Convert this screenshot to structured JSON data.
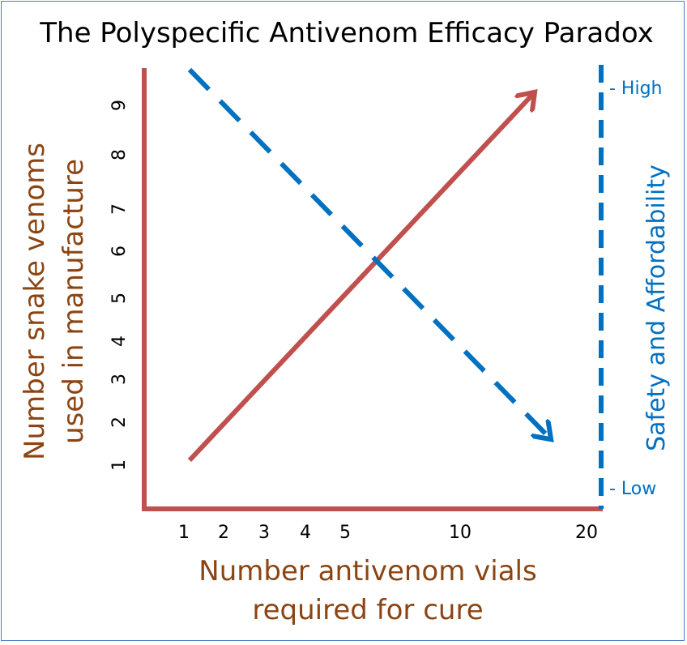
{
  "title": "The Polyspecific Antivenom Efficacy Paradox",
  "x_axis": {
    "label_line1": "Number antivenom vials",
    "label_line2": "required for cure",
    "ticks": [
      "1",
      "2",
      "3",
      "4",
      "5",
      "10",
      "20"
    ]
  },
  "y_axis_left": {
    "label_line1": "Number snake venoms",
    "label_line2": "used in manufacture",
    "ticks": [
      "1",
      "2",
      "3",
      "4",
      "5",
      "6",
      "7",
      "8",
      "9"
    ]
  },
  "y_axis_right": {
    "label": "Safety and Affordability",
    "high_label": "- High",
    "low_label": "- Low"
  },
  "colors": {
    "venom_axis": "#c0504d",
    "safety_axis": "#0070c0",
    "label_brown": "#8b4513",
    "frame": "#4a7ebb"
  },
  "series": [
    {
      "name": "",
      "trend": "increasing",
      "style": "solid",
      "color": "#c0504d"
    },
    {
      "name": "",
      "trend": "decreasing",
      "style": "dashed",
      "color": "#0070c0"
    }
  ]
}
